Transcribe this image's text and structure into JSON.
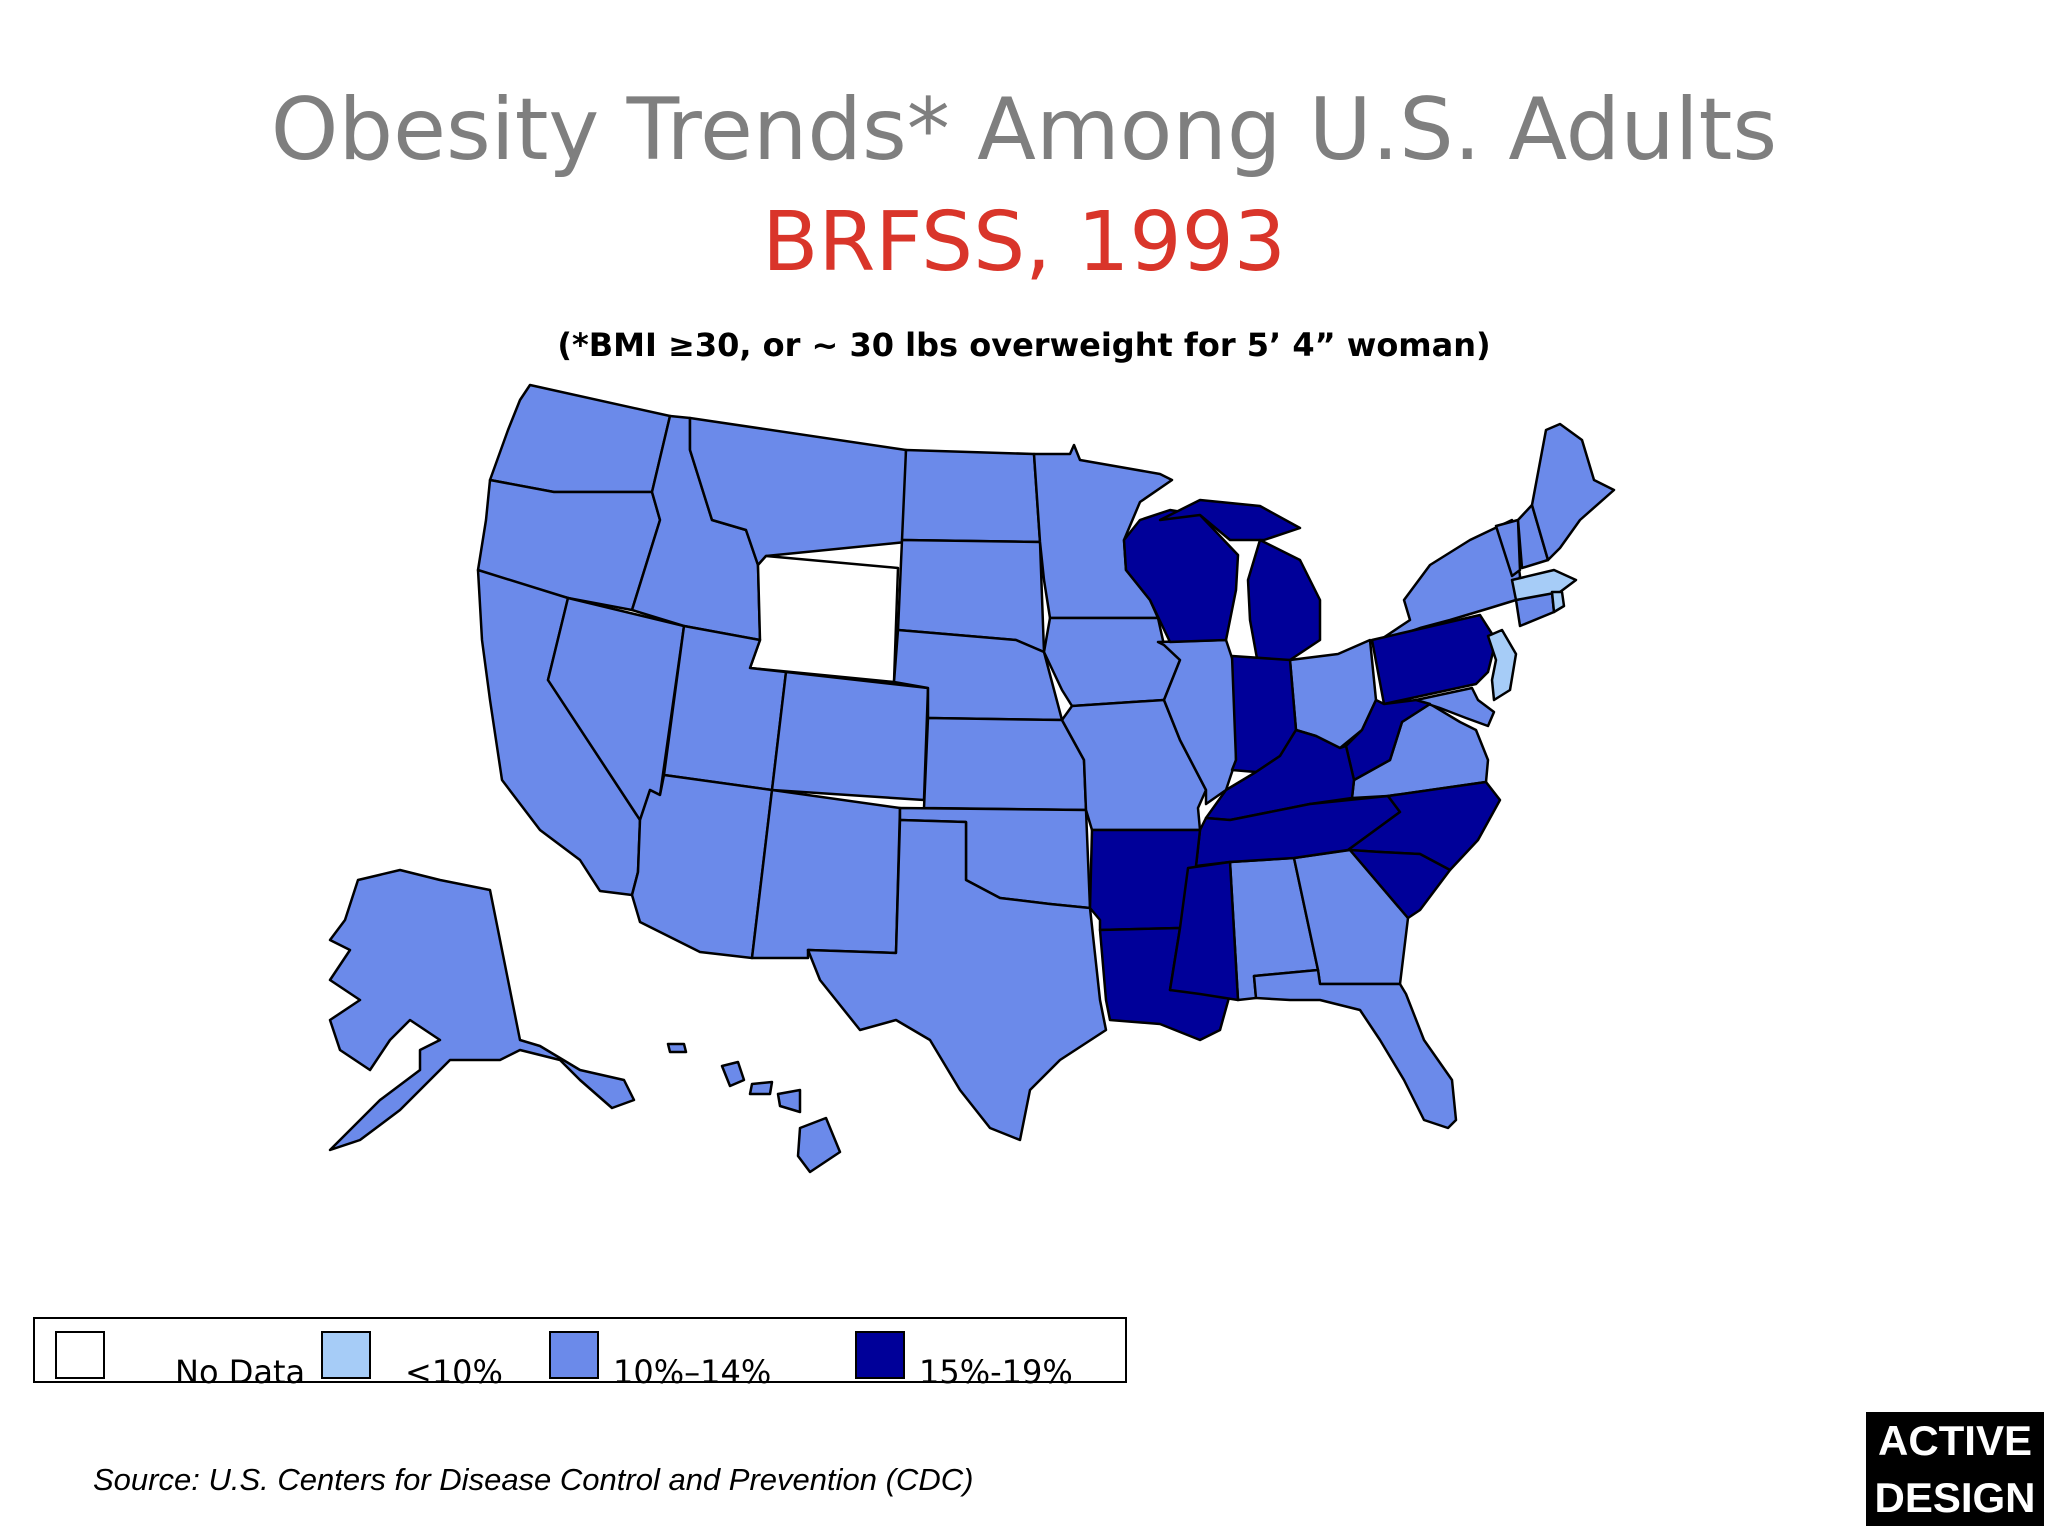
{
  "title": "Obesity Trends* Among U.S. Adults",
  "subtitle": "BRFSS, 1993",
  "note": "(*BMI ≥30, or ~ 30 lbs overweight for 5’ 4” woman)",
  "colors": {
    "no_data": "#ffffff",
    "lt10": "#a6ccf7",
    "p10_14": "#6b8aea",
    "p15_19": "#000099"
  },
  "legend": {
    "items": [
      {
        "label": "No Data"
      },
      {
        "label": "<10%"
      },
      {
        "label": "10%–14%"
      },
      {
        "label": "15%-19%"
      }
    ]
  },
  "categories": {
    "no_data": [
      "Wyoming"
    ],
    "lt10": [
      "Massachusetts",
      "New Jersey",
      "Rhode Island"
    ],
    "p15_19": [
      "Wisconsin",
      "Michigan",
      "Indiana",
      "Pennsylvania",
      "West Virginia",
      "Kentucky",
      "Tennessee",
      "North Carolina",
      "South Carolina",
      "Arkansas",
      "Louisiana",
      "Mississippi"
    ]
  },
  "source": "Source: U.S. Centers for Disease Control and Prevention (CDC)",
  "logo": {
    "line1": "ACTIVE",
    "line2": "DESIGN"
  }
}
